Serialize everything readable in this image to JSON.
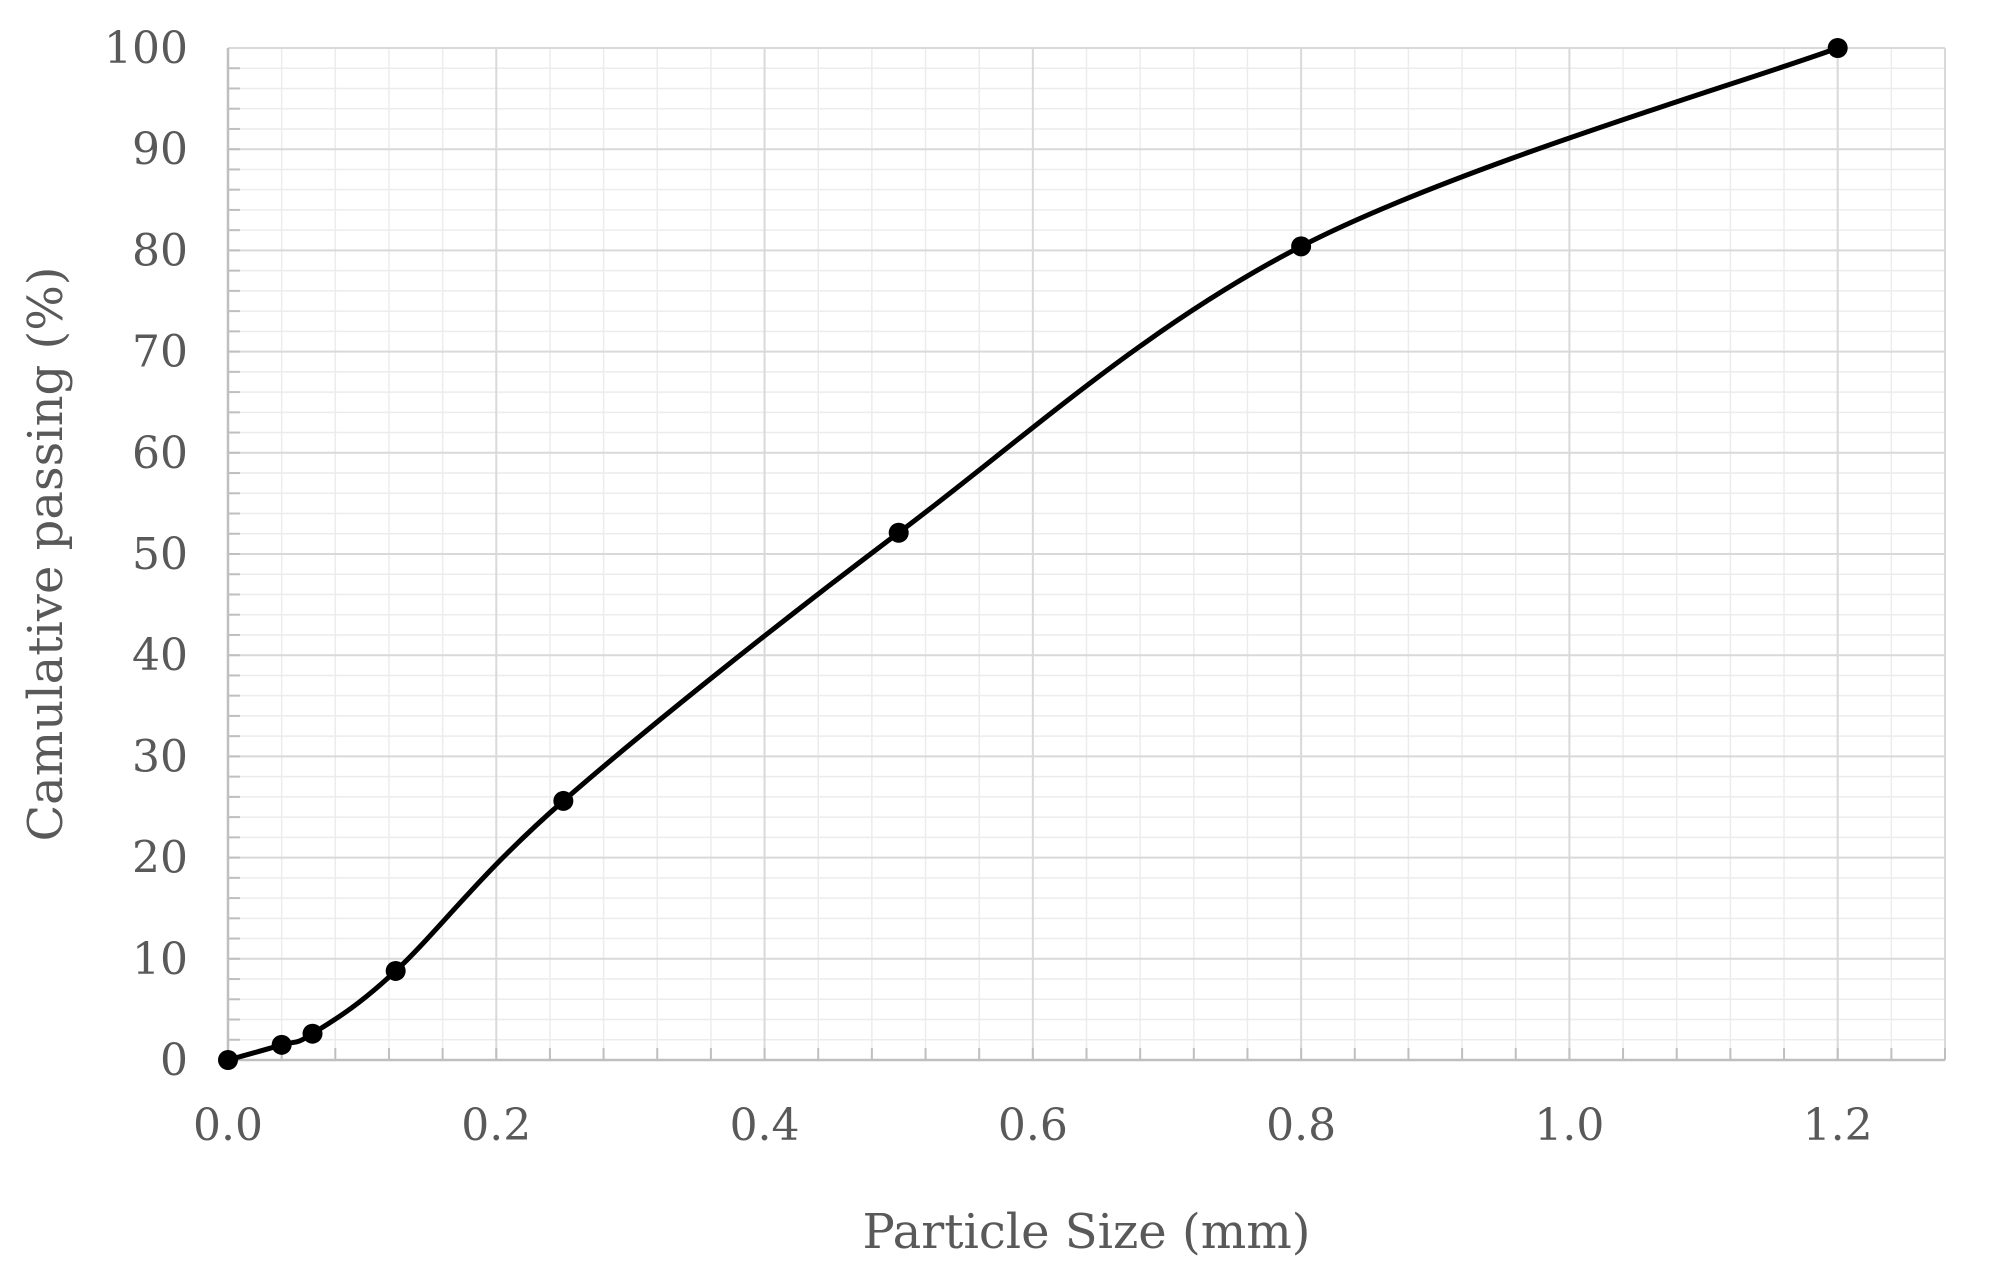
{
  "chart_data": {
    "type": "scatter",
    "title": "",
    "xlabel": "Particle Size (mm)",
    "ylabel": "Camulative passing (%)",
    "xlim": [
      0,
      1.28
    ],
    "ylim": [
      0,
      100
    ],
    "x_ticks": [
      "0.0",
      "0.2",
      "0.4",
      "0.6",
      "0.8",
      "1.0",
      "1.2"
    ],
    "y_ticks": [
      "0",
      "10",
      "20",
      "30",
      "40",
      "50",
      "60",
      "70",
      "80",
      "90",
      "100"
    ],
    "grid": true,
    "legend": "none",
    "line_style": "smooth",
    "series": [
      {
        "color": "#000000",
        "x": [
          0.0,
          0.04,
          0.063,
          0.125,
          0.25,
          0.5,
          0.8,
          1.2
        ],
        "y": [
          0.0,
          1.5,
          2.6,
          8.8,
          25.6,
          52.1,
          80.4,
          100.0
        ]
      }
    ]
  }
}
